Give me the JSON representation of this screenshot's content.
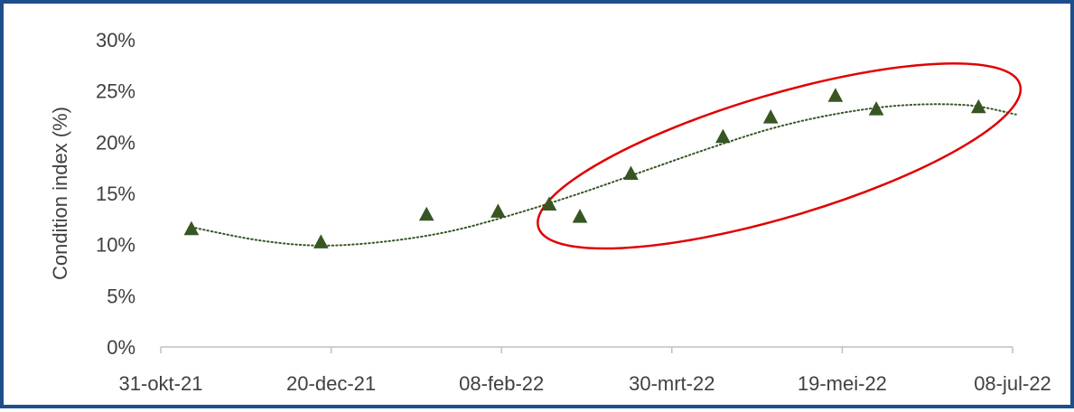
{
  "chart_data": {
    "type": "scatter",
    "ylabel": "Condition index (%)",
    "xlabel": "",
    "x_ticks": [
      "31-okt-21",
      "20-dec-21",
      "08-feb-22",
      "30-mrt-22",
      "19-mei-22",
      "08-jul-22"
    ],
    "x_tick_dates": [
      "2021-10-31",
      "2021-12-20",
      "2022-02-08",
      "2022-03-30",
      "2022-05-19",
      "2022-07-08"
    ],
    "xlim": [
      "2021-10-31",
      "2022-07-08"
    ],
    "y_ticks": [
      "0%",
      "5%",
      "10%",
      "15%",
      "20%",
      "25%",
      "30%"
    ],
    "ylim": [
      0,
      30
    ],
    "series": [
      {
        "marker": "triangle",
        "color": "#375623",
        "points": [
          {
            "x": "2021-11-09",
            "y": 11.5
          },
          {
            "x": "2021-12-17",
            "y": 10.2
          },
          {
            "x": "2022-01-17",
            "y": 12.9
          },
          {
            "x": "2022-02-07",
            "y": 13.2
          },
          {
            "x": "2022-02-22",
            "y": 13.9
          },
          {
            "x": "2022-03-03",
            "y": 12.7
          },
          {
            "x": "2022-03-18",
            "y": 16.9
          },
          {
            "x": "2022-04-14",
            "y": 20.5
          },
          {
            "x": "2022-04-28",
            "y": 22.4
          },
          {
            "x": "2022-05-17",
            "y": 24.5
          },
          {
            "x": "2022-05-29",
            "y": 23.2
          },
          {
            "x": "2022-06-28",
            "y": 23.4
          }
        ]
      }
    ],
    "trendline": {
      "style": "dotted",
      "color": "#375623",
      "points": [
        {
          "x": "2021-11-09",
          "y": 11.7
        },
        {
          "x": "2021-11-29",
          "y": 10.4
        },
        {
          "x": "2021-12-17",
          "y": 9.9
        },
        {
          "x": "2022-01-05",
          "y": 10.3
        },
        {
          "x": "2022-01-24",
          "y": 11.3
        },
        {
          "x": "2022-02-12",
          "y": 13.0
        },
        {
          "x": "2022-03-03",
          "y": 15.0
        },
        {
          "x": "2022-03-22",
          "y": 17.2
        },
        {
          "x": "2022-04-10",
          "y": 19.4
        },
        {
          "x": "2022-04-29",
          "y": 21.4
        },
        {
          "x": "2022-05-18",
          "y": 22.8
        },
        {
          "x": "2022-06-06",
          "y": 23.6
        },
        {
          "x": "2022-06-25",
          "y": 23.6
        },
        {
          "x": "2022-07-09",
          "y": 22.7
        }
      ]
    },
    "highlight_ellipse": {
      "color": "#e00000",
      "x_range": [
        "2022-02-20",
        "2022-07-09"
      ],
      "y_range": [
        10.2,
        27.1
      ],
      "tilt": "rising"
    },
    "grid": false,
    "legend": "none"
  }
}
